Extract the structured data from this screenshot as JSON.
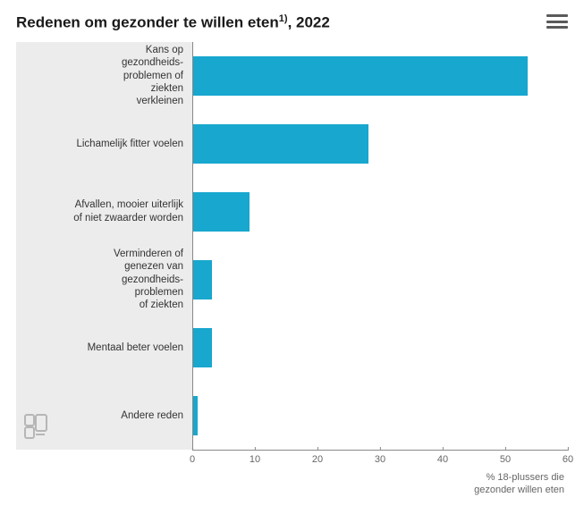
{
  "title_main": "Redenen om gezonder te willen eten",
  "title_sup": "1)",
  "title_year": ", 2022",
  "chart": {
    "type": "bar-horizontal",
    "xlim": [
      0,
      60
    ],
    "xtick_step": 10,
    "xticks": [
      0,
      10,
      20,
      30,
      40,
      50,
      60
    ],
    "x_axis_title": "% 18-plussers die\ngezonder willen eten",
    "bar_color": "#18a7ce",
    "panel_bg": "#ececec",
    "plot_bg": "#ffffff",
    "axis_color": "#888888",
    "tick_label_color": "#666666",
    "categories": [
      {
        "label": "Kans op\ngezondheids-\nproblemen of\nziekten\nverkleinen",
        "value": 53.5
      },
      {
        "label": "Lichamelijk fitter voelen",
        "value": 28
      },
      {
        "label": "Afvallen, mooier uiterlijk\nof niet zwaarder worden",
        "value": 9
      },
      {
        "label": "Verminderen of\ngenezen van\ngezondheids-\nproblemen\nof ziekten",
        "value": 3
      },
      {
        "label": "Mentaal beter voelen",
        "value": 3
      },
      {
        "label": "Andere reden",
        "value": 0.7
      }
    ]
  },
  "menu_icon": "hamburger-icon",
  "brand_logo": "cbs"
}
